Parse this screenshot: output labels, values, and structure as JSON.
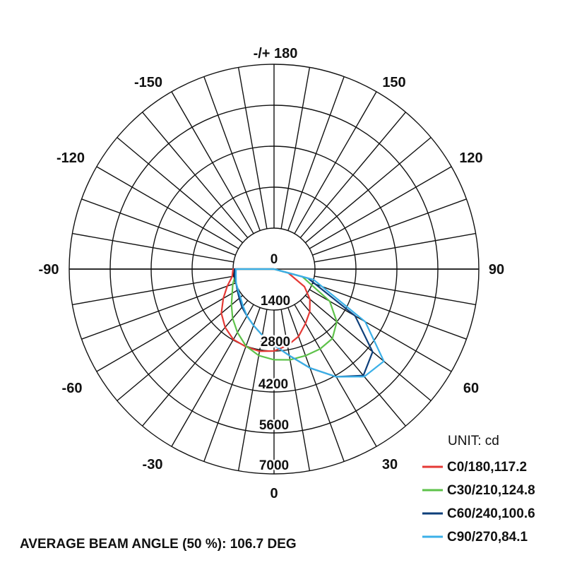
{
  "chart_data": {
    "type": "polar",
    "unit_label": "UNIT: cd",
    "footer": "AVERAGE BEAM ANGLE (50 %): 106.7 DEG",
    "radial_ticks": [
      {
        "value": 0,
        "label": "0"
      },
      {
        "value": 1400,
        "label": "1400"
      },
      {
        "value": 2800,
        "label": "2800"
      },
      {
        "value": 4200,
        "label": "4200"
      },
      {
        "value": 5600,
        "label": "5600"
      },
      {
        "value": 7000,
        "label": "7000"
      }
    ],
    "rmax": 7000,
    "angle_labels": [
      {
        "angle": 0,
        "label": "0"
      },
      {
        "angle": 30,
        "label": "30"
      },
      {
        "angle": 60,
        "label": "60"
      },
      {
        "angle": 90,
        "label": "90"
      },
      {
        "angle": 120,
        "label": "120"
      },
      {
        "angle": 150,
        "label": "150"
      },
      {
        "angle": 180,
        "label": "-/+ 180"
      },
      {
        "angle": -150,
        "label": "-150"
      },
      {
        "angle": -120,
        "label": "-120"
      },
      {
        "angle": -90,
        "label": "-90"
      },
      {
        "angle": -60,
        "label": "-60"
      },
      {
        "angle": -30,
        "label": "-30"
      }
    ],
    "series": [
      {
        "name": "C0/180,117.2",
        "color": "#e53935",
        "points": [
          [
            1400,
            -90
          ],
          [
            1450,
            -80
          ],
          [
            1700,
            -70
          ],
          [
            2000,
            -60
          ],
          [
            2350,
            -50
          ],
          [
            2600,
            -40
          ],
          [
            2780,
            -30
          ],
          [
            2820,
            -20
          ],
          [
            2850,
            -10
          ],
          [
            2800,
            0
          ],
          [
            2650,
            10
          ],
          [
            2450,
            20
          ],
          [
            2150,
            30
          ],
          [
            1900,
            40
          ],
          [
            1600,
            50
          ],
          [
            1200,
            60
          ],
          [
            500,
            75
          ],
          [
            0,
            90
          ]
        ]
      },
      {
        "name": "C30/210,124.8",
        "color": "#5ec24a",
        "points": [
          [
            1300,
            -90
          ],
          [
            1350,
            -80
          ],
          [
            1500,
            -70
          ],
          [
            1650,
            -60
          ],
          [
            1900,
            -50
          ],
          [
            2200,
            -40
          ],
          [
            2500,
            -30
          ],
          [
            2800,
            -20
          ],
          [
            3000,
            -10
          ],
          [
            3100,
            0
          ],
          [
            3150,
            10
          ],
          [
            3150,
            20
          ],
          [
            3150,
            30
          ],
          [
            3100,
            40
          ],
          [
            2800,
            50
          ],
          [
            2200,
            60
          ],
          [
            1000,
            75
          ],
          [
            0,
            90
          ]
        ]
      },
      {
        "name": "C60/240,100.6",
        "color": "#0d3f7a",
        "points": [
          [
            1350,
            -90
          ],
          [
            1370,
            -80
          ],
          [
            1380,
            -70
          ],
          [
            1450,
            -60
          ],
          [
            1550,
            -50
          ],
          [
            1700,
            -40
          ],
          [
            1850,
            -30
          ],
          [
            2050,
            -20
          ],
          [
            2300,
            -10
          ],
          [
            2600,
            0
          ],
          [
            3000,
            10
          ],
          [
            3600,
            20
          ],
          [
            4250,
            30
          ],
          [
            4750,
            40
          ],
          [
            4400,
            50
          ],
          [
            3200,
            60
          ],
          [
            1200,
            75
          ],
          [
            0,
            90
          ]
        ]
      },
      {
        "name": "C90/270,84.1",
        "color": "#3bb0e8",
        "points": [
          [
            1300,
            -90
          ],
          [
            1320,
            -80
          ],
          [
            1380,
            -70
          ],
          [
            1420,
            -60
          ],
          [
            1500,
            -50
          ],
          [
            1650,
            -40
          ],
          [
            1850,
            -30
          ],
          [
            2050,
            -20
          ],
          [
            2300,
            -10
          ],
          [
            2600,
            0
          ],
          [
            3000,
            10
          ],
          [
            3600,
            20
          ],
          [
            4250,
            30
          ],
          [
            4800,
            40
          ],
          [
            4900,
            50
          ],
          [
            3600,
            60
          ],
          [
            1400,
            75
          ],
          [
            0,
            90
          ]
        ]
      }
    ]
  }
}
